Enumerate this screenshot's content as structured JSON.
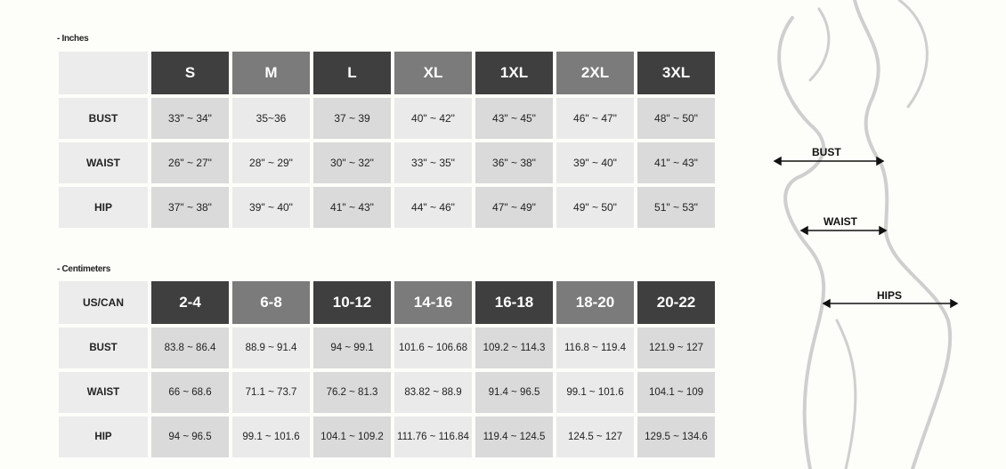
{
  "inches": {
    "section_label": "- Inches",
    "header": [
      "",
      "S",
      "M",
      "L",
      "XL",
      "1XL",
      "2XL",
      "3XL"
    ],
    "rows": [
      {
        "label": "BUST",
        "values": [
          "33\" ~ 34\"",
          "35~36",
          "37 ~ 39",
          "40\" ~ 42\"",
          "43\" ~ 45\"",
          "46\" ~ 47\"",
          "48\" ~ 50\""
        ]
      },
      {
        "label": "WAIST",
        "values": [
          "26\" ~ 27\"",
          "28\" ~ 29\"",
          "30\" ~ 32\"",
          "33\" ~ 35\"",
          "36\" ~ 38\"",
          "39\" ~ 40\"",
          "41\" ~ 43\""
        ]
      },
      {
        "label": "HIP",
        "values": [
          "37\" ~ 38\"",
          "39\" ~ 40\"",
          "41\" ~ 43\"",
          "44\" ~ 46\"",
          "47\" ~ 49\"",
          "49\" ~ 50\"",
          "51\" ~ 53\""
        ]
      }
    ]
  },
  "centimeters": {
    "section_label": "- Centimeters",
    "header": [
      "US/CAN",
      "2-4",
      "6-8",
      "10-12",
      "14-16",
      "16-18",
      "18-20",
      "20-22"
    ],
    "rows": [
      {
        "label": "BUST",
        "values": [
          "83.8 ~ 86.4",
          "88.9 ~ 91.4",
          "94 ~ 99.1",
          "101.6 ~ 106.68",
          "109.2 ~ 114.3",
          "116.8 ~ 119.4",
          "121.9 ~ 127"
        ]
      },
      {
        "label": "WAIST",
        "values": [
          "66 ~ 68.6",
          "71.1 ~ 73.7",
          "76.2 ~ 81.3",
          "83.82 ~ 88.9",
          "91.4 ~ 96.5",
          "99.1 ~ 101.6",
          "104.1 ~ 109"
        ]
      },
      {
        "label": "HIP",
        "values": [
          "94 ~ 96.5",
          "99.1 ~ 101.6",
          "104.1 ~ 109.2",
          "111.76 ~ 116.84",
          "119.4 ~ 124.5",
          "124.5 ~ 127",
          "129.5 ~ 134.6"
        ]
      }
    ]
  },
  "figure": {
    "bust_label": "BUST",
    "waist_label": "WAIST",
    "hips_label": "HIPS"
  },
  "colors": {
    "header_dark": "#3f3f3f",
    "header_mid": "#7b7b7b",
    "cell_dark": "#dadada",
    "cell_light": "#eaeaea"
  }
}
